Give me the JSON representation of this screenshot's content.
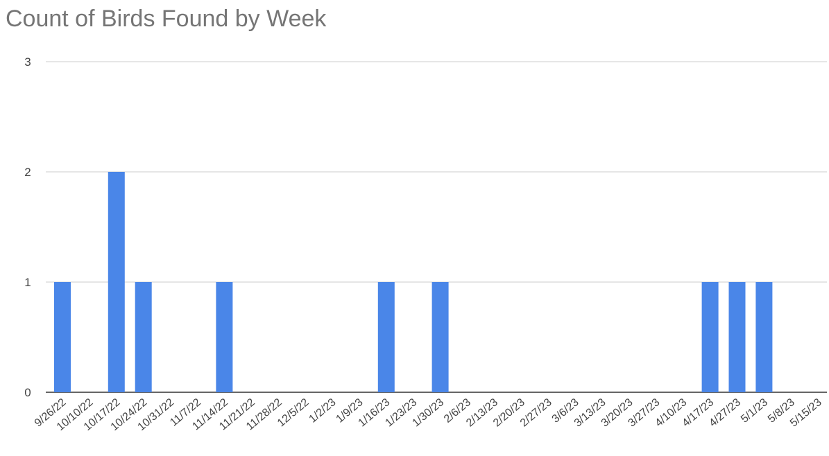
{
  "chart_data": {
    "type": "bar",
    "title": "Count of Birds Found by Week",
    "xlabel": "",
    "ylabel": "",
    "ylim": [
      0,
      3
    ],
    "yticks": [
      "0",
      "1",
      "2",
      "3"
    ],
    "grid": true,
    "legend": "none",
    "bar_color": "#4a86e8",
    "categories": [
      "9/26/22",
      "10/10/22",
      "10/17/22",
      "10/24/22",
      "10/31/22",
      "11/7/22",
      "11/14/22",
      "11/21/22",
      "11/28/22",
      "12/5/22",
      "1/2/23",
      "1/9/23",
      "1/16/23",
      "1/23/23",
      "1/30/23",
      "2/6/23",
      "2/13/23",
      "2/20/23",
      "2/27/23",
      "3/6/23",
      "3/13/23",
      "3/20/23",
      "3/27/23",
      "4/10/23",
      "4/17/23",
      "4/27/23",
      "5/1/23",
      "5/8/23",
      "5/15/23"
    ],
    "values": [
      1,
      0,
      2,
      1,
      0,
      0,
      1,
      0,
      0,
      0,
      0,
      0,
      1,
      0,
      1,
      0,
      0,
      0,
      0,
      0,
      0,
      0,
      0,
      0,
      1,
      1,
      1,
      0,
      0
    ]
  }
}
